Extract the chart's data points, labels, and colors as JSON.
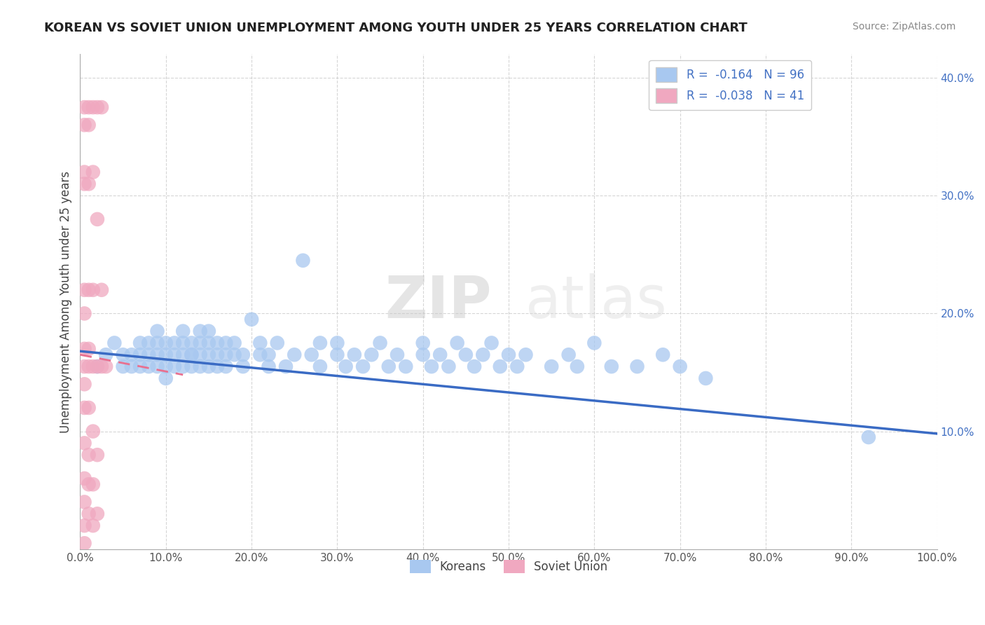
{
  "title": "KOREAN VS SOVIET UNION UNEMPLOYMENT AMONG YOUTH UNDER 25 YEARS CORRELATION CHART",
  "source": "Source: ZipAtlas.com",
  "ylabel": "Unemployment Among Youth under 25 years",
  "xlim": [
    0.0,
    1.0
  ],
  "ylim": [
    0.0,
    0.42
  ],
  "xticks": [
    0.0,
    0.1,
    0.2,
    0.3,
    0.4,
    0.5,
    0.6,
    0.7,
    0.8,
    0.9,
    1.0
  ],
  "xticklabels": [
    "0.0%",
    "10.0%",
    "20.0%",
    "30.0%",
    "40.0%",
    "50.0%",
    "60.0%",
    "70.0%",
    "80.0%",
    "90.0%",
    "100.0%"
  ],
  "yticks": [
    0.1,
    0.2,
    0.3,
    0.4
  ],
  "yticklabels": [
    "10.0%",
    "20.0%",
    "30.0%",
    "40.0%"
  ],
  "korean_R": -0.164,
  "korean_N": 96,
  "soviet_R": -0.038,
  "soviet_N": 41,
  "korean_color": "#a8c8f0",
  "soviet_color": "#f0a8c0",
  "korean_line_color": "#3a6bc4",
  "soviet_line_color": "#e87090",
  "watermark_zip": "ZIP",
  "watermark_atlas": "atlas",
  "legend_labels": [
    "Koreans",
    "Soviet Union"
  ],
  "korean_points": [
    [
      0.02,
      0.155
    ],
    [
      0.03,
      0.165
    ],
    [
      0.04,
      0.175
    ],
    [
      0.05,
      0.165
    ],
    [
      0.05,
      0.155
    ],
    [
      0.06,
      0.165
    ],
    [
      0.06,
      0.155
    ],
    [
      0.07,
      0.175
    ],
    [
      0.07,
      0.155
    ],
    [
      0.07,
      0.165
    ],
    [
      0.08,
      0.165
    ],
    [
      0.08,
      0.175
    ],
    [
      0.08,
      0.155
    ],
    [
      0.09,
      0.165
    ],
    [
      0.09,
      0.175
    ],
    [
      0.09,
      0.155
    ],
    [
      0.09,
      0.185
    ],
    [
      0.1,
      0.175
    ],
    [
      0.1,
      0.155
    ],
    [
      0.1,
      0.165
    ],
    [
      0.1,
      0.145
    ],
    [
      0.11,
      0.165
    ],
    [
      0.11,
      0.175
    ],
    [
      0.11,
      0.155
    ],
    [
      0.12,
      0.175
    ],
    [
      0.12,
      0.165
    ],
    [
      0.12,
      0.155
    ],
    [
      0.12,
      0.185
    ],
    [
      0.13,
      0.165
    ],
    [
      0.13,
      0.175
    ],
    [
      0.13,
      0.155
    ],
    [
      0.13,
      0.165
    ],
    [
      0.14,
      0.175
    ],
    [
      0.14,
      0.165
    ],
    [
      0.14,
      0.155
    ],
    [
      0.14,
      0.185
    ],
    [
      0.15,
      0.175
    ],
    [
      0.15,
      0.155
    ],
    [
      0.15,
      0.165
    ],
    [
      0.15,
      0.185
    ],
    [
      0.16,
      0.165
    ],
    [
      0.16,
      0.175
    ],
    [
      0.16,
      0.155
    ],
    [
      0.17,
      0.175
    ],
    [
      0.17,
      0.165
    ],
    [
      0.17,
      0.155
    ],
    [
      0.18,
      0.165
    ],
    [
      0.18,
      0.175
    ],
    [
      0.19,
      0.155
    ],
    [
      0.19,
      0.165
    ],
    [
      0.2,
      0.195
    ],
    [
      0.21,
      0.165
    ],
    [
      0.21,
      0.175
    ],
    [
      0.22,
      0.155
    ],
    [
      0.22,
      0.165
    ],
    [
      0.23,
      0.175
    ],
    [
      0.24,
      0.155
    ],
    [
      0.25,
      0.165
    ],
    [
      0.26,
      0.245
    ],
    [
      0.27,
      0.165
    ],
    [
      0.28,
      0.175
    ],
    [
      0.28,
      0.155
    ],
    [
      0.3,
      0.165
    ],
    [
      0.3,
      0.175
    ],
    [
      0.31,
      0.155
    ],
    [
      0.32,
      0.165
    ],
    [
      0.33,
      0.155
    ],
    [
      0.34,
      0.165
    ],
    [
      0.35,
      0.175
    ],
    [
      0.36,
      0.155
    ],
    [
      0.37,
      0.165
    ],
    [
      0.38,
      0.155
    ],
    [
      0.4,
      0.175
    ],
    [
      0.4,
      0.165
    ],
    [
      0.41,
      0.155
    ],
    [
      0.42,
      0.165
    ],
    [
      0.43,
      0.155
    ],
    [
      0.44,
      0.175
    ],
    [
      0.45,
      0.165
    ],
    [
      0.46,
      0.155
    ],
    [
      0.47,
      0.165
    ],
    [
      0.48,
      0.175
    ],
    [
      0.49,
      0.155
    ],
    [
      0.5,
      0.165
    ],
    [
      0.51,
      0.155
    ],
    [
      0.52,
      0.165
    ],
    [
      0.55,
      0.155
    ],
    [
      0.57,
      0.165
    ],
    [
      0.58,
      0.155
    ],
    [
      0.6,
      0.175
    ],
    [
      0.62,
      0.155
    ],
    [
      0.65,
      0.155
    ],
    [
      0.68,
      0.165
    ],
    [
      0.7,
      0.155
    ],
    [
      0.73,
      0.145
    ],
    [
      0.92,
      0.095
    ]
  ],
  "soviet_points": [
    [
      0.005,
      0.375
    ],
    [
      0.005,
      0.36
    ],
    [
      0.005,
      0.32
    ],
    [
      0.005,
      0.31
    ],
    [
      0.005,
      0.22
    ],
    [
      0.005,
      0.2
    ],
    [
      0.005,
      0.17
    ],
    [
      0.005,
      0.155
    ],
    [
      0.005,
      0.14
    ],
    [
      0.005,
      0.12
    ],
    [
      0.005,
      0.09
    ],
    [
      0.005,
      0.06
    ],
    [
      0.005,
      0.04
    ],
    [
      0.005,
      0.02
    ],
    [
      0.005,
      0.005
    ],
    [
      0.01,
      0.375
    ],
    [
      0.01,
      0.36
    ],
    [
      0.01,
      0.31
    ],
    [
      0.01,
      0.22
    ],
    [
      0.01,
      0.17
    ],
    [
      0.01,
      0.155
    ],
    [
      0.01,
      0.12
    ],
    [
      0.01,
      0.08
    ],
    [
      0.01,
      0.055
    ],
    [
      0.01,
      0.03
    ],
    [
      0.015,
      0.375
    ],
    [
      0.015,
      0.32
    ],
    [
      0.015,
      0.22
    ],
    [
      0.015,
      0.155
    ],
    [
      0.015,
      0.1
    ],
    [
      0.015,
      0.055
    ],
    [
      0.015,
      0.02
    ],
    [
      0.02,
      0.375
    ],
    [
      0.02,
      0.28
    ],
    [
      0.02,
      0.155
    ],
    [
      0.02,
      0.08
    ],
    [
      0.02,
      0.03
    ],
    [
      0.025,
      0.375
    ],
    [
      0.025,
      0.22
    ],
    [
      0.025,
      0.155
    ],
    [
      0.03,
      0.155
    ]
  ]
}
